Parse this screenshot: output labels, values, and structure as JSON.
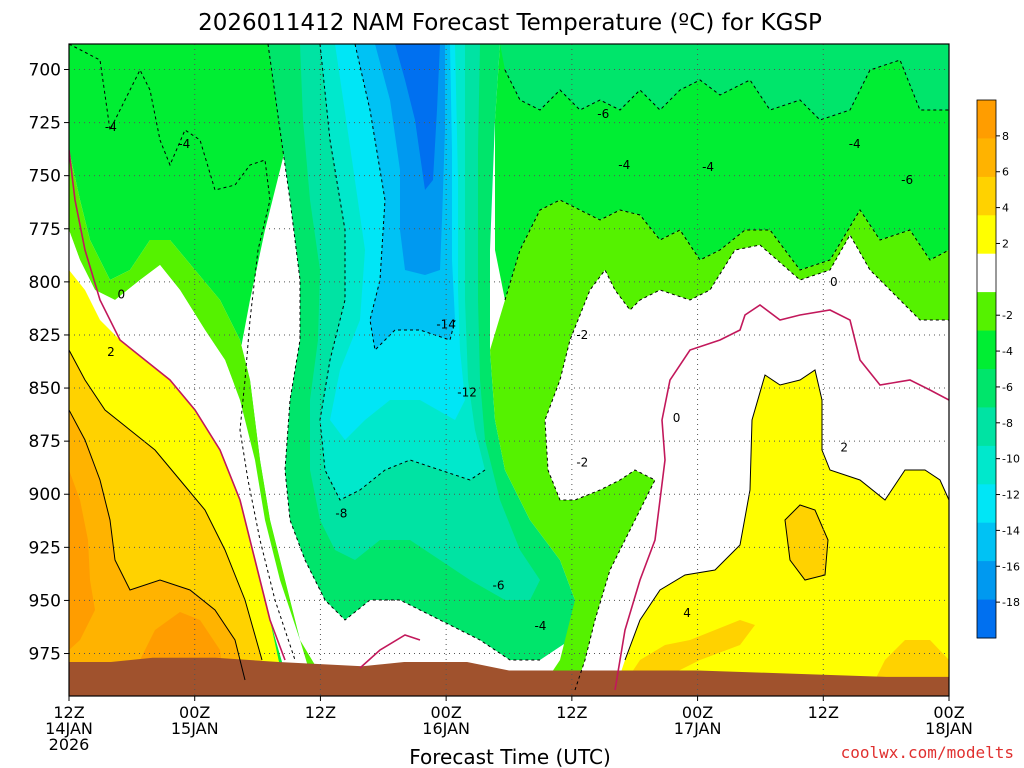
{
  "chart_data": {
    "type": "heatmap",
    "title": "2026011412 NAM Forecast Temperature (ºC) for KGSP",
    "xlabel": "Forecast Time (UTC)",
    "ylabel": "",
    "credit": "coolwx.com/modelts",
    "y_axis": {
      "ticks": [
        700,
        725,
        750,
        775,
        800,
        825,
        850,
        875,
        900,
        925,
        950,
        975
      ],
      "range_hpa": [
        688,
        995
      ],
      "inverted": true
    },
    "x_axis": {
      "range_hours": [
        0,
        84
      ],
      "ticks": [
        {
          "hour": 0,
          "line1": "12Z",
          "line2": "14JAN",
          "line3": "2026"
        },
        {
          "hour": 12,
          "line1": "00Z",
          "line2": "15JAN",
          "line3": ""
        },
        {
          "hour": 24,
          "line1": "12Z",
          "line2": "",
          "line3": ""
        },
        {
          "hour": 36,
          "line1": "00Z",
          "line2": "16JAN",
          "line3": ""
        },
        {
          "hour": 48,
          "line1": "12Z",
          "line2": "",
          "line3": ""
        },
        {
          "hour": 60,
          "line1": "00Z",
          "line2": "17JAN",
          "line3": ""
        },
        {
          "hour": 72,
          "line1": "12Z",
          "line2": "",
          "line3": ""
        },
        {
          "hour": 84,
          "line1": "00Z",
          "line2": "18JAN",
          "line3": ""
        }
      ]
    },
    "grid": true,
    "colorbar": {
      "ticks": [
        8,
        6,
        4,
        2,
        -2,
        -4,
        -6,
        -8,
        -10,
        -12,
        -14,
        -16,
        -18
      ],
      "bands": [
        {
          "min": 8,
          "max": 10,
          "color": "#ff9d00"
        },
        {
          "min": 6,
          "max": 8,
          "color": "#ffb300"
        },
        {
          "min": 4,
          "max": 6,
          "color": "#ffd200"
        },
        {
          "min": 2,
          "max": 4,
          "color": "#ffff00"
        },
        {
          "min": -2,
          "max": 2,
          "color": "#ffffff"
        },
        {
          "min": -4,
          "max": -2,
          "color": "#55f200"
        },
        {
          "min": -6,
          "max": -4,
          "color": "#00ee33"
        },
        {
          "min": -8,
          "max": -6,
          "color": "#00e56b"
        },
        {
          "min": -10,
          "max": -8,
          "color": "#00e3a3"
        },
        {
          "min": -12,
          "max": -10,
          "color": "#00e8cc"
        },
        {
          "min": -14,
          "max": -12,
          "color": "#00e6f6"
        },
        {
          "min": -16,
          "max": -14,
          "color": "#00c2f4"
        },
        {
          "min": -18,
          "max": -16,
          "color": "#0099f0"
        },
        {
          "min": -20,
          "max": -18,
          "color": "#0070f0"
        }
      ]
    },
    "terrain_color": "#a0522d",
    "surface_pressure_hpa": [
      {
        "hour": 0,
        "p": 979
      },
      {
        "hour": 4,
        "p": 979
      },
      {
        "hour": 8,
        "p": 977
      },
      {
        "hour": 14,
        "p": 977
      },
      {
        "hour": 20,
        "p": 979
      },
      {
        "hour": 24,
        "p": 980
      },
      {
        "hour": 28,
        "p": 981
      },
      {
        "hour": 32,
        "p": 979
      },
      {
        "hour": 38,
        "p": 979
      },
      {
        "hour": 42,
        "p": 983
      },
      {
        "hour": 48,
        "p": 983
      },
      {
        "hour": 54,
        "p": 983
      },
      {
        "hour": 60,
        "p": 983
      },
      {
        "hour": 66,
        "p": 984
      },
      {
        "hour": 72,
        "p": 985
      },
      {
        "hour": 78,
        "p": 986
      },
      {
        "hour": 84,
        "p": 986
      }
    ],
    "contour_labels": [
      {
        "text": "-4",
        "hour": 4,
        "p": 727
      },
      {
        "text": "-4",
        "hour": 11,
        "p": 735
      },
      {
        "text": "0",
        "hour": 5,
        "p": 806
      },
      {
        "text": "2",
        "hour": 4,
        "p": 833
      },
      {
        "text": "-14",
        "hour": 36,
        "p": 820
      },
      {
        "text": "-12",
        "hour": 38,
        "p": 852
      },
      {
        "text": "-8",
        "hour": 26,
        "p": 909
      },
      {
        "text": "-6",
        "hour": 41,
        "p": 943
      },
      {
        "text": "-4",
        "hour": 45,
        "p": 962
      },
      {
        "text": "-6",
        "hour": 51,
        "p": 721
      },
      {
        "text": "-4",
        "hour": 53,
        "p": 745
      },
      {
        "text": "-4",
        "hour": 61,
        "p": 746
      },
      {
        "text": "-2",
        "hour": 49,
        "p": 825
      },
      {
        "text": "-2",
        "hour": 49,
        "p": 885
      },
      {
        "text": "0",
        "hour": 58,
        "p": 864
      },
      {
        "text": "0",
        "hour": 73,
        "p": 800
      },
      {
        "text": "-4",
        "hour": 75,
        "p": 735
      },
      {
        "text": "-6",
        "hour": 80,
        "p": 752
      },
      {
        "text": "4",
        "hour": 59,
        "p": 956
      },
      {
        "text": "2",
        "hour": 74,
        "p": 878
      }
    ]
  }
}
